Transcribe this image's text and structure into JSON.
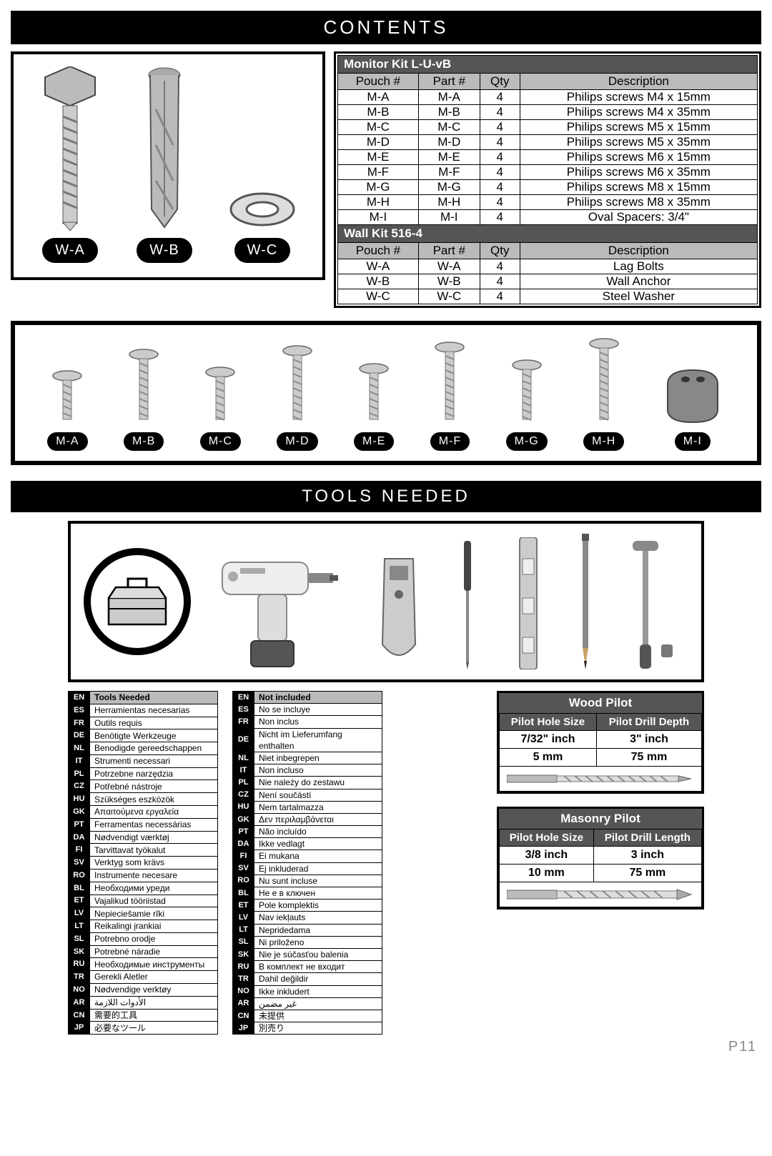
{
  "headers": {
    "contents": "CONTENTS",
    "tools_needed": "TOOLS NEEDED"
  },
  "wall_items": [
    {
      "label": "W-A"
    },
    {
      "label": "W-B"
    },
    {
      "label": "W-C"
    }
  ],
  "monitor_kit": {
    "title": "Monitor Kit L-U-vB",
    "columns": [
      "Pouch #",
      "Part #",
      "Qty",
      "Description"
    ],
    "rows": [
      [
        "M-A",
        "M-A",
        "4",
        "Philips screws M4 x 15mm"
      ],
      [
        "M-B",
        "M-B",
        "4",
        "Philips screws M4 x 35mm"
      ],
      [
        "M-C",
        "M-C",
        "4",
        "Philips screws M5 x 15mm"
      ],
      [
        "M-D",
        "M-D",
        "4",
        "Philips screws M5 x 35mm"
      ],
      [
        "M-E",
        "M-E",
        "4",
        "Philips screws M6 x 15mm"
      ],
      [
        "M-F",
        "M-F",
        "4",
        "Philips screws M6 x 35mm"
      ],
      [
        "M-G",
        "M-G",
        "4",
        "Philips screws M8 x 15mm"
      ],
      [
        "M-H",
        "M-H",
        "4",
        "Philips screws M8 x 35mm"
      ],
      [
        "M-I",
        "M-I",
        "4",
        "Oval Spacers: 3/4\""
      ]
    ]
  },
  "wall_kit": {
    "title": "Wall Kit 516-4",
    "columns": [
      "Pouch #",
      "Part #",
      "Qty",
      "Description"
    ],
    "rows": [
      [
        "W-A",
        "W-A",
        "4",
        "Lag Bolts"
      ],
      [
        "W-B",
        "W-B",
        "4",
        "Wall Anchor"
      ],
      [
        "W-C",
        "W-C",
        "4",
        "Steel Washer"
      ]
    ]
  },
  "screw_labels": [
    "M-A",
    "M-B",
    "M-C",
    "M-D",
    "M-E",
    "M-F",
    "M-G",
    "M-H",
    "M-I"
  ],
  "lang_tools": {
    "header": "Tools Needed",
    "rows": [
      [
        "EN",
        "Tools Needed"
      ],
      [
        "ES",
        "Herramientas necesarias"
      ],
      [
        "FR",
        "Outils requis"
      ],
      [
        "DE",
        "Benötigte Werkzeuge"
      ],
      [
        "NL",
        "Benodigde gereedschappen"
      ],
      [
        "IT",
        "Strumenti necessari"
      ],
      [
        "PL",
        "Potrzebne narzędzia"
      ],
      [
        "CZ",
        "Potřebné nástroje"
      ],
      [
        "HU",
        "Szükséges eszközök"
      ],
      [
        "GK",
        "Απαιτούμενα εργαλεία"
      ],
      [
        "PT",
        "Ferramentas necessárias"
      ],
      [
        "DA",
        "Nødvendigt værktøj"
      ],
      [
        "FI",
        "Tarvittavat työkalut"
      ],
      [
        "SV",
        "Verktyg som krävs"
      ],
      [
        "RO",
        "Instrumente necesare"
      ],
      [
        "BL",
        "Необходими уреди"
      ],
      [
        "ET",
        "Vajalikud tööriistad"
      ],
      [
        "LV",
        "Nepieciešamie rīki"
      ],
      [
        "LT",
        "Reikalingi įrankiai"
      ],
      [
        "SL",
        "Potrebno orodje"
      ],
      [
        "SK",
        "Potrebné náradie"
      ],
      [
        "RU",
        "Необходимые инструменты"
      ],
      [
        "TR",
        "Gerekli Aletler"
      ],
      [
        "NO",
        "Nødvendige verktøy"
      ],
      [
        "AR",
        "الأدوات اللازمة"
      ],
      [
        "CN",
        "需要的工具"
      ],
      [
        "JP",
        "必要なツール"
      ]
    ]
  },
  "lang_notincl": {
    "header": "Not included",
    "rows": [
      [
        "EN",
        "Not included"
      ],
      [
        "ES",
        "No se incluye"
      ],
      [
        "FR",
        "Non inclus"
      ],
      [
        "DE",
        "Nicht im Lieferumfang enthalten"
      ],
      [
        "NL",
        "Niet inbegrepen"
      ],
      [
        "IT",
        "Non incluso"
      ],
      [
        "PL",
        "Nie należy do zestawu"
      ],
      [
        "CZ",
        "Není součástí"
      ],
      [
        "HU",
        "Nem tartalmazza"
      ],
      [
        "GK",
        "Δεν περιλαμβάνεται"
      ],
      [
        "PT",
        "Não incluído"
      ],
      [
        "DA",
        "Ikke vedlagt"
      ],
      [
        "FI",
        "Ei mukana"
      ],
      [
        "SV",
        "Ej inkluderad"
      ],
      [
        "RO",
        "Nu sunt incluse"
      ],
      [
        "BL",
        "Не е в ключен"
      ],
      [
        "ET",
        "Pole komplektis"
      ],
      [
        "LV",
        "Nav iekļauts"
      ],
      [
        "LT",
        "Nepridedama"
      ],
      [
        "SL",
        "Ni priloženo"
      ],
      [
        "SK",
        "Nie je súčasťou balenia"
      ],
      [
        "RU",
        "В комплект не входит"
      ],
      [
        "TR",
        "Dahil değildir"
      ],
      [
        "NO",
        "Ikke inkludert"
      ],
      [
        "AR",
        "غير مضمن"
      ],
      [
        "CN",
        "未提供"
      ],
      [
        "JP",
        "別売り"
      ]
    ]
  },
  "wood_pilot": {
    "title": "Wood Pilot",
    "col1": "Pilot Hole Size",
    "col2": "Pilot Drill Depth",
    "rows": [
      [
        "7/32\" inch",
        "3\" inch"
      ],
      [
        "5 mm",
        "75 mm"
      ]
    ]
  },
  "masonry_pilot": {
    "title": "Masonry Pilot",
    "col1": "Pilot Hole Size",
    "col2": "Pilot Drill Length",
    "rows": [
      [
        "3/8 inch",
        "3 inch"
      ],
      [
        "10 mm",
        "75 mm"
      ]
    ]
  },
  "page_number": "P11",
  "colors": {
    "banner_bg": "#000000",
    "banner_fg": "#ffffff",
    "table_section_bg": "#555555",
    "table_header_bg": "#bbbbbb",
    "page_num_color": "#888888"
  }
}
